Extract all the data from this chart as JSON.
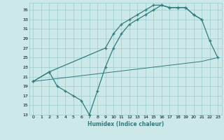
{
  "background_color": "#cce8e8",
  "grid_color": "#99cccc",
  "line_color": "#2d7d7d",
  "xlabel": "Humidex (Indice chaleur)",
  "xlim": [
    -0.5,
    23.5
  ],
  "ylim": [
    13,
    36.5
  ],
  "yticks": [
    13,
    15,
    17,
    19,
    21,
    23,
    25,
    27,
    29,
    31,
    33,
    35
  ],
  "xticks": [
    0,
    1,
    2,
    3,
    4,
    5,
    6,
    7,
    8,
    9,
    10,
    11,
    12,
    13,
    14,
    15,
    16,
    17,
    18,
    19,
    20,
    21,
    22,
    23
  ],
  "line1_x": [
    0,
    2,
    3,
    4,
    5,
    6,
    7,
    8,
    9,
    10,
    11,
    12,
    13,
    14,
    15,
    16,
    17,
    18,
    19,
    20,
    21,
    22,
    23
  ],
  "line1_y": [
    20,
    22,
    19,
    18,
    17,
    16,
    13,
    18,
    23,
    27,
    30,
    32,
    33,
    34,
    35,
    36,
    35.5,
    35.5,
    35.5,
    34,
    33,
    28.5,
    25
  ],
  "line2_x": [
    0,
    2,
    9,
    10,
    11,
    12,
    13,
    14,
    15,
    16,
    17,
    18,
    19,
    20,
    21
  ],
  "line2_y": [
    20,
    22,
    27,
    30,
    32,
    33,
    34,
    35,
    36,
    36,
    35.5,
    35.5,
    35.5,
    34,
    33
  ],
  "line3_x": [
    0,
    1,
    2,
    3,
    4,
    5,
    6,
    7,
    8,
    9,
    10,
    11,
    12,
    13,
    14,
    15,
    16,
    17,
    18,
    19,
    20,
    21,
    22,
    23
  ],
  "line3_y": [
    20,
    20.2,
    20.4,
    20.6,
    20.8,
    21.0,
    21.2,
    21.4,
    21.6,
    21.8,
    22.0,
    22.2,
    22.4,
    22.6,
    22.8,
    23.0,
    23.2,
    23.4,
    23.6,
    23.8,
    24.0,
    24.2,
    24.6,
    25.0
  ]
}
